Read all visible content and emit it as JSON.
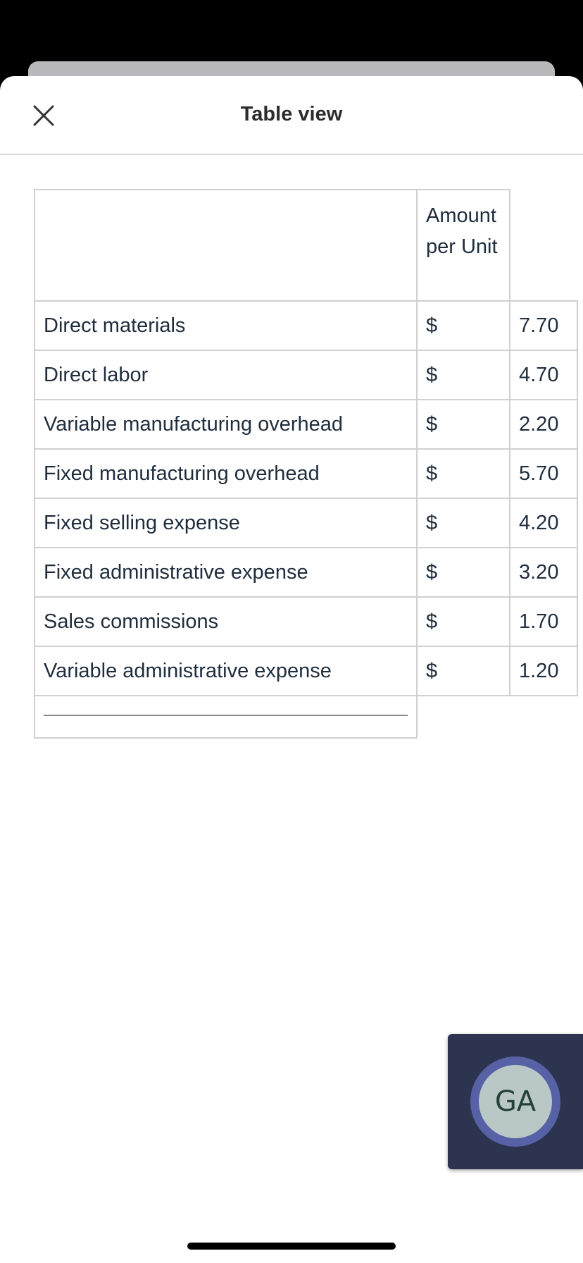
{
  "header": {
    "title": "Table view",
    "close_icon": "close-icon"
  },
  "table": {
    "column_header": "Amount per Unit",
    "rows": [
      {
        "label": "Direct materials",
        "currency": "$",
        "value": "7.70"
      },
      {
        "label": "Direct labor",
        "currency": "$",
        "value": "4.70"
      },
      {
        "label": "Variable manufacturing overhead",
        "currency": "$",
        "value": "2.20"
      },
      {
        "label": "Fixed manufacturing overhead",
        "currency": "$",
        "value": "5.70"
      },
      {
        "label": "Fixed selling expense",
        "currency": "$",
        "value": "4.20"
      },
      {
        "label": "Fixed administrative expense",
        "currency": "$",
        "value": "3.20"
      },
      {
        "label": "Sales commissions",
        "currency": "$",
        "value": "1.70"
      },
      {
        "label": "Variable administrative expense",
        "currency": "$",
        "value": "1.20"
      }
    ]
  },
  "fab": {
    "initials": "GA"
  },
  "colors": {
    "fab_bg": "#2d3450",
    "avatar_ring": "#5761a6",
    "avatar_fill": "#b9c8c6",
    "text": "#1f2d3d"
  }
}
